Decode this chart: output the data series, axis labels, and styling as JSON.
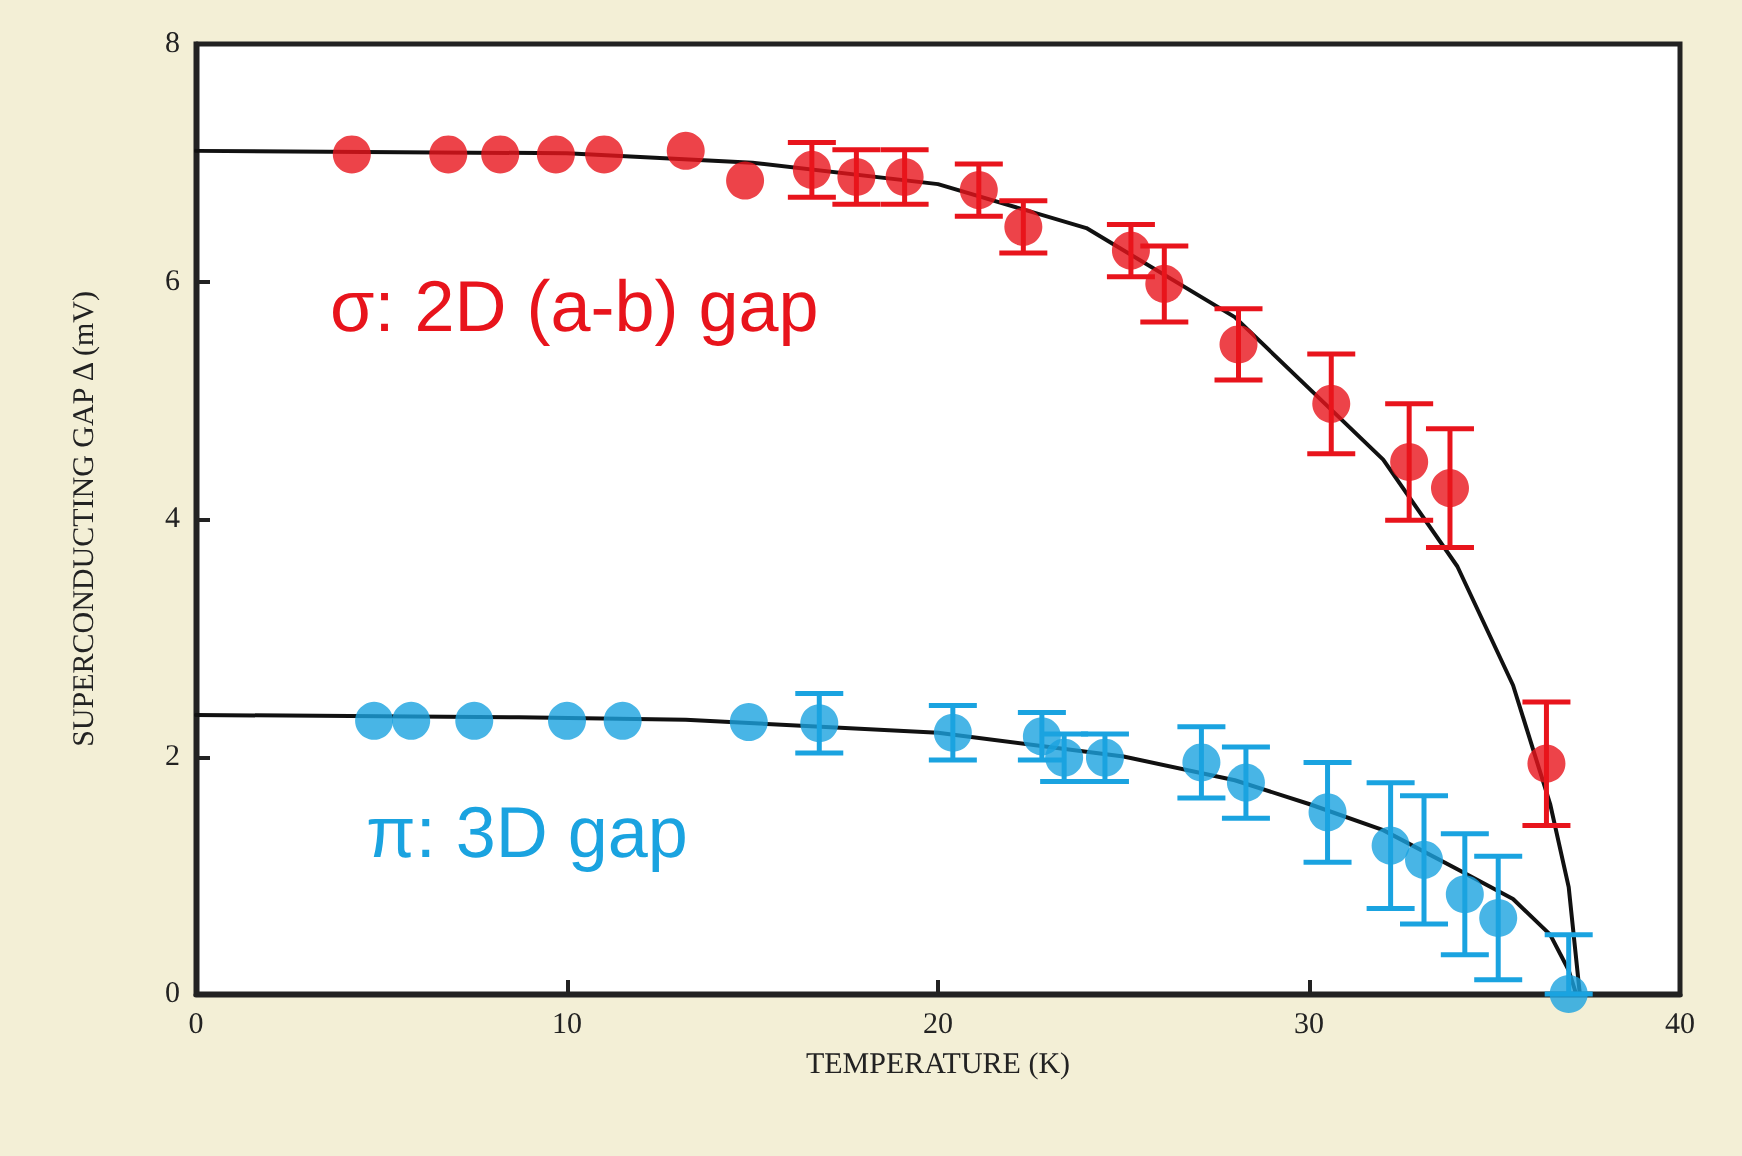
{
  "chart_data": {
    "type": "scatter",
    "xlabel": "TEMPERATURE (K)",
    "ylabel": "SUPERCONDUCTING GAP Δ (mV)",
    "xlim": [
      0,
      40
    ],
    "xticks": [
      0,
      10,
      20,
      30,
      40
    ],
    "ylim": [
      0,
      8
    ],
    "yticks": [
      0,
      2,
      4,
      6,
      8
    ],
    "grid": false,
    "legend": false,
    "marker": "circle",
    "series": [
      {
        "name": "σ: 2D (a-b) gap",
        "color": "#e8141c",
        "x": [
          4.2,
          6.8,
          8.2,
          9.7,
          11.0,
          13.2,
          14.8,
          16.6,
          17.8,
          19.1,
          21.1,
          22.3,
          25.2,
          26.1,
          28.1,
          30.6,
          32.7,
          33.8,
          36.4
        ],
        "values": [
          7.07,
          7.07,
          7.07,
          7.07,
          7.07,
          7.1,
          6.85,
          6.94,
          6.88,
          6.88,
          6.77,
          6.46,
          6.26,
          5.98,
          5.47,
          4.97,
          4.48,
          4.26,
          1.94
        ],
        "errors": [
          null,
          null,
          null,
          null,
          null,
          null,
          null,
          0.23,
          0.23,
          0.23,
          0.22,
          0.22,
          0.22,
          0.32,
          0.3,
          0.42,
          0.49,
          0.5,
          0.52
        ]
      },
      {
        "name": "π: 3D gap",
        "color": "#1aa3e0",
        "x": [
          4.8,
          5.8,
          7.5,
          10.0,
          11.5,
          14.9,
          16.8,
          20.4,
          22.8,
          23.4,
          24.5,
          27.1,
          28.3,
          30.5,
          32.2,
          33.1,
          34.2,
          35.1,
          37.0
        ],
        "values": [
          2.3,
          2.3,
          2.3,
          2.3,
          2.3,
          2.29,
          2.28,
          2.2,
          2.17,
          1.99,
          1.99,
          1.95,
          1.78,
          1.53,
          1.25,
          1.13,
          0.84,
          0.64,
          0.0
        ],
        "errors": [
          null,
          null,
          null,
          null,
          null,
          null,
          0.25,
          0.23,
          0.2,
          0.2,
          0.2,
          0.3,
          0.3,
          0.42,
          0.53,
          0.54,
          0.51,
          0.52,
          [
            0,
            0.5
          ]
        ]
      },
      {
        "type": "line",
        "color": "#111111",
        "marker": "none",
        "x": [
          0,
          10,
          15,
          20,
          24,
          28,
          30,
          32,
          34,
          35.5,
          36.5,
          37,
          37.3
        ],
        "values": [
          7.1,
          7.08,
          7.0,
          6.82,
          6.45,
          5.7,
          5.1,
          4.5,
          3.6,
          2.6,
          1.6,
          0.9,
          0
        ]
      },
      {
        "type": "line",
        "color": "#111111",
        "marker": "none",
        "x": [
          0,
          8.7,
          13.2,
          20,
          25,
          28,
          30,
          32,
          34,
          35.5,
          36.5,
          37,
          37.2
        ],
        "values": [
          2.35,
          2.33,
          2.31,
          2.2,
          2.0,
          1.8,
          1.6,
          1.38,
          1.05,
          0.8,
          0.5,
          0.2,
          0
        ]
      }
    ]
  }
}
